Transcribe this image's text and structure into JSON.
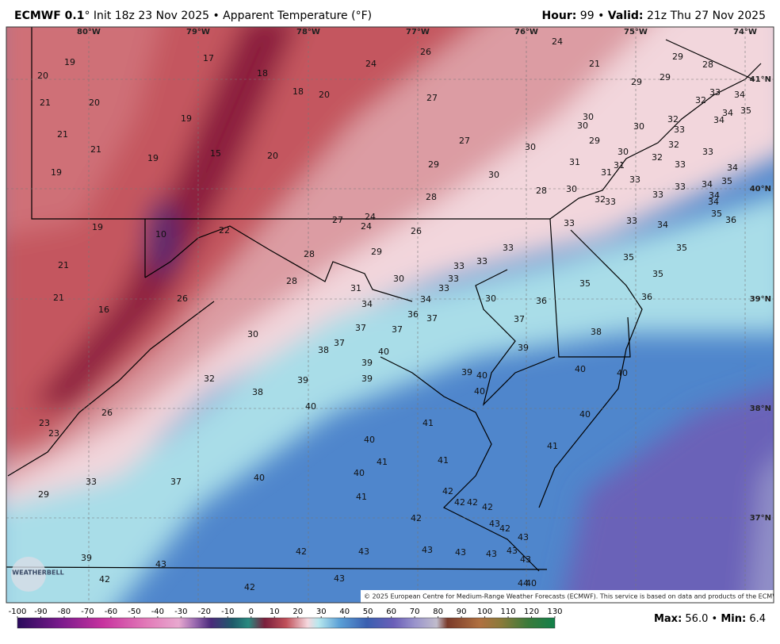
{
  "header": {
    "model": "ECMWF 0.1",
    "title_rest": "° Init 18z 23 Nov 2025 • Apparent Temperature (°F)",
    "hour_label": "Hour:",
    "hour": "99",
    "separator": "•",
    "valid_label": "Valid:",
    "valid": "21z Thu 27 Nov 2025"
  },
  "map": {
    "longitudes": [
      "80°W",
      "79°W",
      "78°W",
      "77°W",
      "76°W",
      "75°W",
      "74°W"
    ],
    "latitudes": [
      "41°N",
      "40°N",
      "39°N",
      "38°N",
      "37°N"
    ],
    "logo": "WEATHERBELL",
    "copyright": "© 2025 European Centre for Medium-Range Weather Forecasts (ECMWF). This service is based on data and products of the ECMWF.",
    "labels": [
      19,
      20,
      21,
      20,
      17,
      18,
      18,
      20,
      24,
      26,
      24,
      21,
      29,
      28,
      29,
      29,
      33,
      34,
      32,
      19,
      21,
      21,
      19,
      15,
      20,
      27,
      27,
      30,
      29,
      30,
      31,
      31,
      31,
      30,
      30,
      29,
      30,
      30,
      32,
      33,
      32,
      33,
      32,
      33,
      34,
      33,
      33,
      33,
      34,
      35,
      34,
      34,
      35,
      36,
      34,
      34,
      35,
      19,
      28,
      30,
      28,
      32,
      33,
      33,
      33,
      34,
      35,
      35,
      35,
      35,
      36,
      27,
      24,
      24,
      26,
      19,
      10,
      22,
      28,
      29,
      33,
      33,
      33,
      33,
      33,
      30,
      31,
      28,
      21,
      21,
      26,
      16,
      34,
      34,
      36,
      37,
      30,
      36,
      37,
      37,
      37,
      38,
      30,
      37,
      38,
      40,
      39,
      39,
      40,
      39,
      39,
      40,
      40,
      40,
      32,
      39,
      38,
      40,
      26,
      40,
      23,
      23,
      41,
      40,
      41,
      41,
      41,
      40,
      33,
      37,
      40,
      29,
      41,
      42,
      42,
      42,
      42,
      42,
      43,
      42,
      43,
      39,
      43,
      42,
      43,
      43,
      43,
      43,
      43,
      43,
      42,
      43,
      44,
      40,
      42
    ]
  },
  "colorbar": {
    "range": [
      -100,
      130
    ],
    "ticks": [
      -100,
      -90,
      -80,
      -70,
      -60,
      -50,
      -40,
      -30,
      -20,
      -10,
      0,
      10,
      20,
      30,
      40,
      50,
      60,
      70,
      80,
      90,
      100,
      110,
      120,
      130
    ]
  },
  "footer": {
    "max_label": "Max:",
    "max": "56.0",
    "separator": "•",
    "min_label": "Min:",
    "min": "6.4"
  }
}
